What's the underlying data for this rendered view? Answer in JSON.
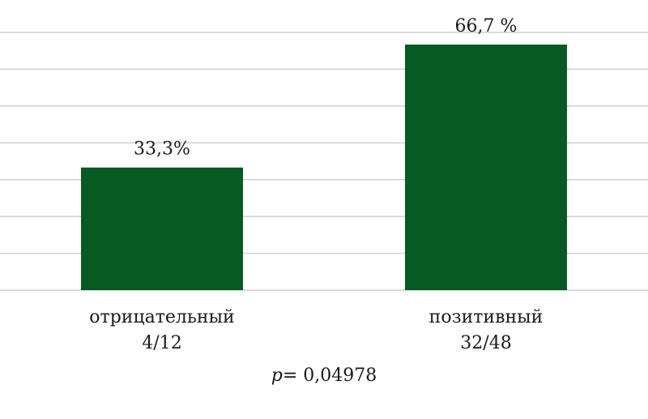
{
  "chart_data": {
    "type": "bar",
    "categories": [
      "отрицательный",
      "позитивный"
    ],
    "category_sublabels": [
      "4/12",
      "32/48"
    ],
    "values": [
      33.3,
      66.7
    ],
    "data_labels": [
      "33,3%",
      "66,7 %"
    ],
    "title": "",
    "xlabel": "",
    "ylabel": "",
    "ylim": [
      0,
      70
    ],
    "grid": true,
    "bar_color": "#065a22",
    "grid_color": "#d0d0d0",
    "annotation": {
      "symbol": "p",
      "text": "= 0,04978"
    }
  }
}
